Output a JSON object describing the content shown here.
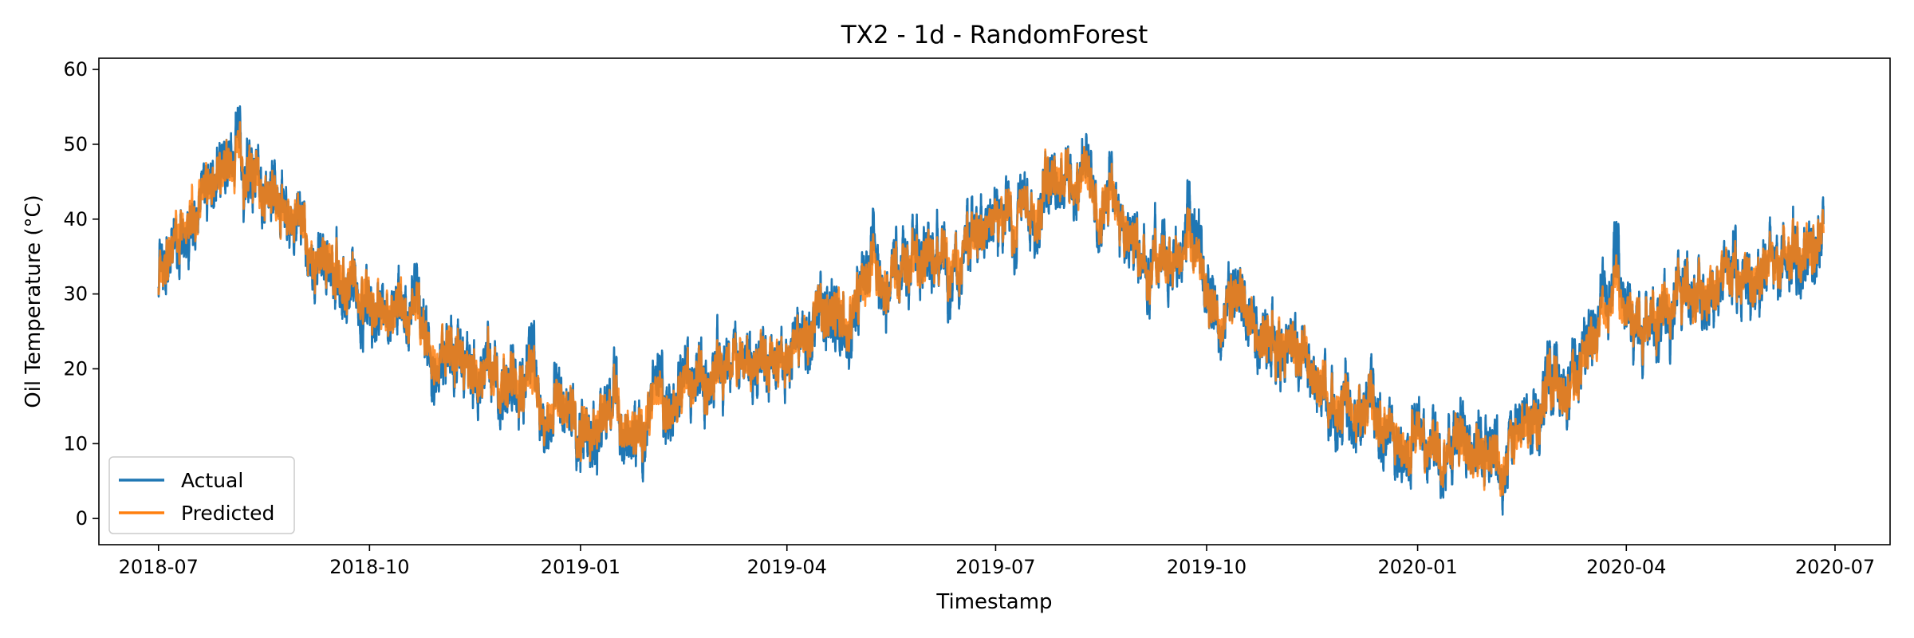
{
  "chart_data": {
    "type": "line",
    "title": "TX2 - 1d - RandomForest",
    "xlabel": "Timestamp",
    "ylabel": "Oil Temperature (°C)",
    "xlim": [
      "2018-06-05",
      "2020-07-25"
    ],
    "ylim": [
      -3.5,
      61.5
    ],
    "x_ticks": [
      "2018-07",
      "2018-10",
      "2019-01",
      "2019-04",
      "2019-07",
      "2019-10",
      "2020-01",
      "2020-04",
      "2020-07"
    ],
    "y_ticks": [
      0,
      10,
      20,
      30,
      40,
      50,
      60
    ],
    "grid": false,
    "legend": {
      "position": "lower-left",
      "entries": [
        "Actual",
        "Predicted"
      ]
    },
    "colors": {
      "actual": "#1f77b4",
      "predicted": "#ff7f0e"
    },
    "x_start": "2018-07-01",
    "x_end": "2020-06-26",
    "sample_interval": "1h",
    "trend_anchors": [
      {
        "date": "2018-07-01",
        "value": 32
      },
      {
        "date": "2018-07-10",
        "value": 40
      },
      {
        "date": "2018-08-01",
        "value": 46
      },
      {
        "date": "2018-08-20",
        "value": 43
      },
      {
        "date": "2018-09-15",
        "value": 35
      },
      {
        "date": "2018-10-10",
        "value": 29
      },
      {
        "date": "2018-11-01",
        "value": 22
      },
      {
        "date": "2018-11-25",
        "value": 19
      },
      {
        "date": "2018-12-15",
        "value": 15
      },
      {
        "date": "2019-01-05",
        "value": 14
      },
      {
        "date": "2019-02-01",
        "value": 14
      },
      {
        "date": "2019-03-01",
        "value": 19
      },
      {
        "date": "2019-04-01",
        "value": 21
      },
      {
        "date": "2019-04-15",
        "value": 27
      },
      {
        "date": "2019-05-15",
        "value": 31
      },
      {
        "date": "2019-06-15",
        "value": 36
      },
      {
        "date": "2019-07-10",
        "value": 40
      },
      {
        "date": "2019-07-28",
        "value": 47
      },
      {
        "date": "2019-08-15",
        "value": 42
      },
      {
        "date": "2019-09-10",
        "value": 34
      },
      {
        "date": "2019-10-10",
        "value": 28
      },
      {
        "date": "2019-11-01",
        "value": 24
      },
      {
        "date": "2019-12-01",
        "value": 16
      },
      {
        "date": "2020-01-01",
        "value": 11
      },
      {
        "date": "2020-02-01",
        "value": 7
      },
      {
        "date": "2020-03-01",
        "value": 16
      },
      {
        "date": "2020-04-01",
        "value": 26
      },
      {
        "date": "2020-05-01",
        "value": 31
      },
      {
        "date": "2020-06-01",
        "value": 34
      },
      {
        "date": "2020-06-26",
        "value": 38
      }
    ],
    "series": [
      {
        "name": "Actual",
        "noise_amplitude": 6.0,
        "min": -0.5,
        "max": 58.3
      },
      {
        "name": "Predicted",
        "noise_amplitude": 4.2,
        "min": 1.0,
        "max": 56.0
      }
    ]
  }
}
